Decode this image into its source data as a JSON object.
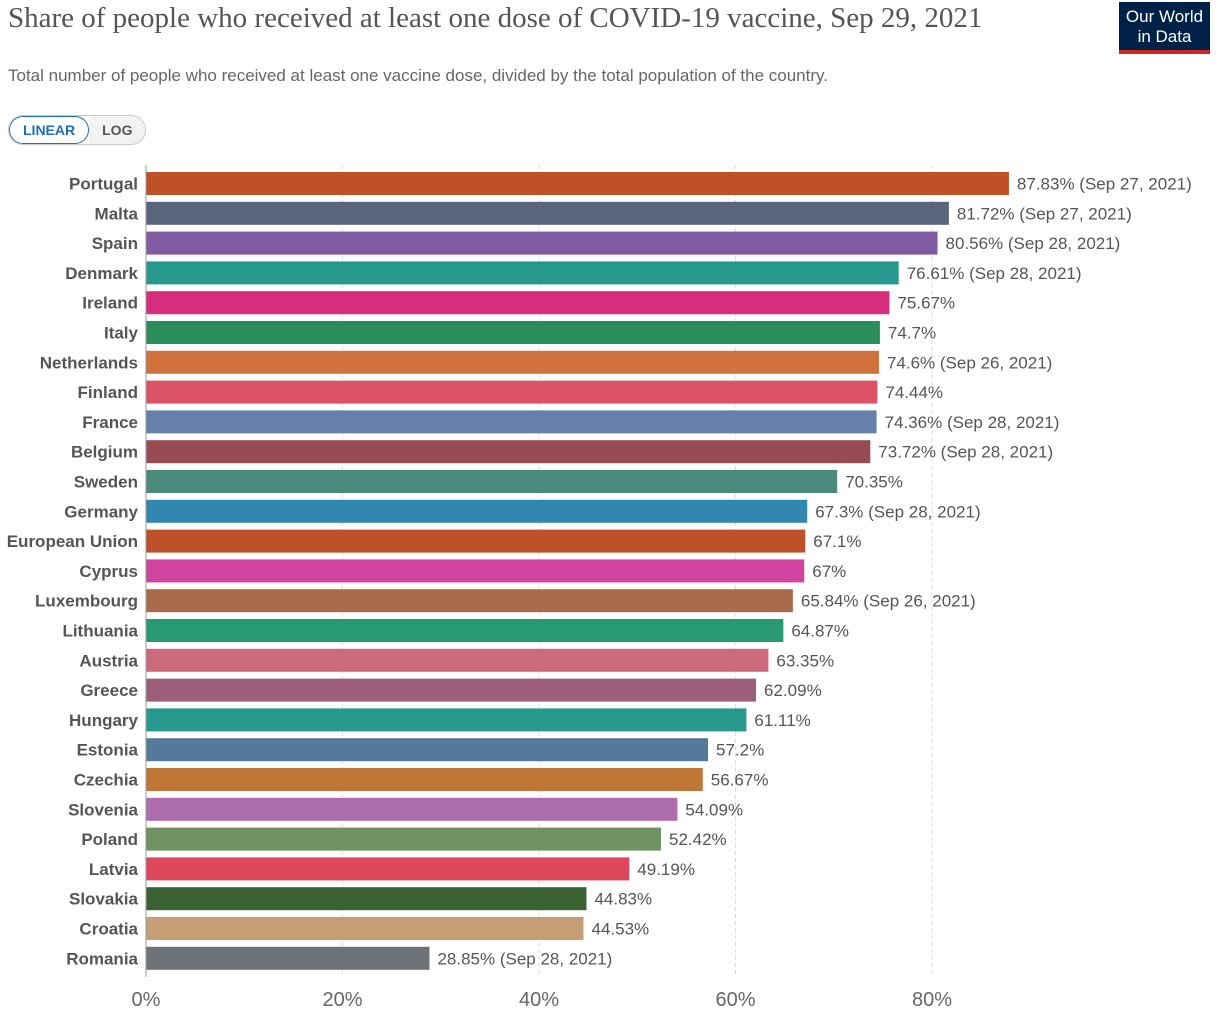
{
  "header": {
    "title": "Share of people who received at least one dose of COVID-19 vaccine, Sep 29, 2021",
    "subtitle": "Total number of people who received at least one vaccine dose, divided by the total population of the country."
  },
  "logo": {
    "line1": "Our World",
    "line2": "in Data"
  },
  "scale_toggle": {
    "linear_label": "LINEAR",
    "log_label": "LOG",
    "selected": "LINEAR"
  },
  "colors": {
    "background": "#ffffff",
    "gridline": "#dddddd",
    "text": "#555555",
    "accent": "#1d6fb8"
  },
  "chart_data": {
    "type": "bar",
    "orientation": "horizontal",
    "title": "Share of people who received at least one dose of COVID-19 vaccine, Sep 29, 2021",
    "xlabel": "",
    "ylabel": "",
    "xlim": [
      0,
      100
    ],
    "x_ticks": [
      "0%",
      "20%",
      "40%",
      "60%",
      "80%"
    ],
    "x_tick_values": [
      0,
      20,
      40,
      60,
      80
    ],
    "grid": true,
    "bars": [
      {
        "category": "Portugal",
        "value": 87.83,
        "label": "87.83% (Sep 27, 2021)",
        "color": "#be5128"
      },
      {
        "category": "Malta",
        "value": 81.72,
        "label": "81.72% (Sep 27, 2021)",
        "color": "#58657d"
      },
      {
        "category": "Spain",
        "value": 80.56,
        "label": "80.56% (Sep 28, 2021)",
        "color": "#805aa3"
      },
      {
        "category": "Denmark",
        "value": 76.61,
        "label": "76.61% (Sep 28, 2021)",
        "color": "#26998e"
      },
      {
        "category": "Ireland",
        "value": 75.67,
        "label": "75.67%",
        "color": "#d62e7c"
      },
      {
        "category": "Italy",
        "value": 74.7,
        "label": "74.7%",
        "color": "#2a8e5c"
      },
      {
        "category": "Netherlands",
        "value": 74.6,
        "label": "74.6% (Sep 26, 2021)",
        "color": "#cf723b"
      },
      {
        "category": "Finland",
        "value": 74.44,
        "label": "74.44%",
        "color": "#dd5366"
      },
      {
        "category": "France",
        "value": 74.36,
        "label": "74.36% (Sep 28, 2021)",
        "color": "#6580aa"
      },
      {
        "category": "Belgium",
        "value": 73.72,
        "label": "73.72% (Sep 28, 2021)",
        "color": "#974b55"
      },
      {
        "category": "Sweden",
        "value": 70.35,
        "label": "70.35%",
        "color": "#4a8a7c"
      },
      {
        "category": "Germany",
        "value": 67.3,
        "label": "67.3% (Sep 28, 2021)",
        "color": "#3287b1"
      },
      {
        "category": "European Union",
        "value": 67.1,
        "label": "67.1%",
        "color": "#bd5129"
      },
      {
        "category": "Cyprus",
        "value": 67,
        "label": "67%",
        "color": "#d0439f"
      },
      {
        "category": "Luxembourg",
        "value": 65.84,
        "label": "65.84% (Sep 26, 2021)",
        "color": "#a86a4a"
      },
      {
        "category": "Lithuania",
        "value": 64.87,
        "label": "64.87%",
        "color": "#279a74"
      },
      {
        "category": "Austria",
        "value": 63.35,
        "label": "63.35%",
        "color": "#cc6a7b"
      },
      {
        "category": "Greece",
        "value": 62.09,
        "label": "62.09%",
        "color": "#9c5f7b"
      },
      {
        "category": "Hungary",
        "value": 61.11,
        "label": "61.11%",
        "color": "#27988d"
      },
      {
        "category": "Estonia",
        "value": 57.2,
        "label": "57.2%",
        "color": "#54799a"
      },
      {
        "category": "Czechia",
        "value": 56.67,
        "label": "56.67%",
        "color": "#bf7637"
      },
      {
        "category": "Slovenia",
        "value": 54.09,
        "label": "54.09%",
        "color": "#ad6cae"
      },
      {
        "category": "Poland",
        "value": 52.42,
        "label": "52.42%",
        "color": "#6f9361"
      },
      {
        "category": "Latvia",
        "value": 49.19,
        "label": "49.19%",
        "color": "#de475c"
      },
      {
        "category": "Slovakia",
        "value": 44.83,
        "label": "44.83%",
        "color": "#3a6233"
      },
      {
        "category": "Croatia",
        "value": 44.53,
        "label": "44.53%",
        "color": "#c59e76"
      },
      {
        "category": "Romania",
        "value": 28.85,
        "label": "28.85% (Sep 28, 2021)",
        "color": "#6d7278"
      }
    ]
  }
}
